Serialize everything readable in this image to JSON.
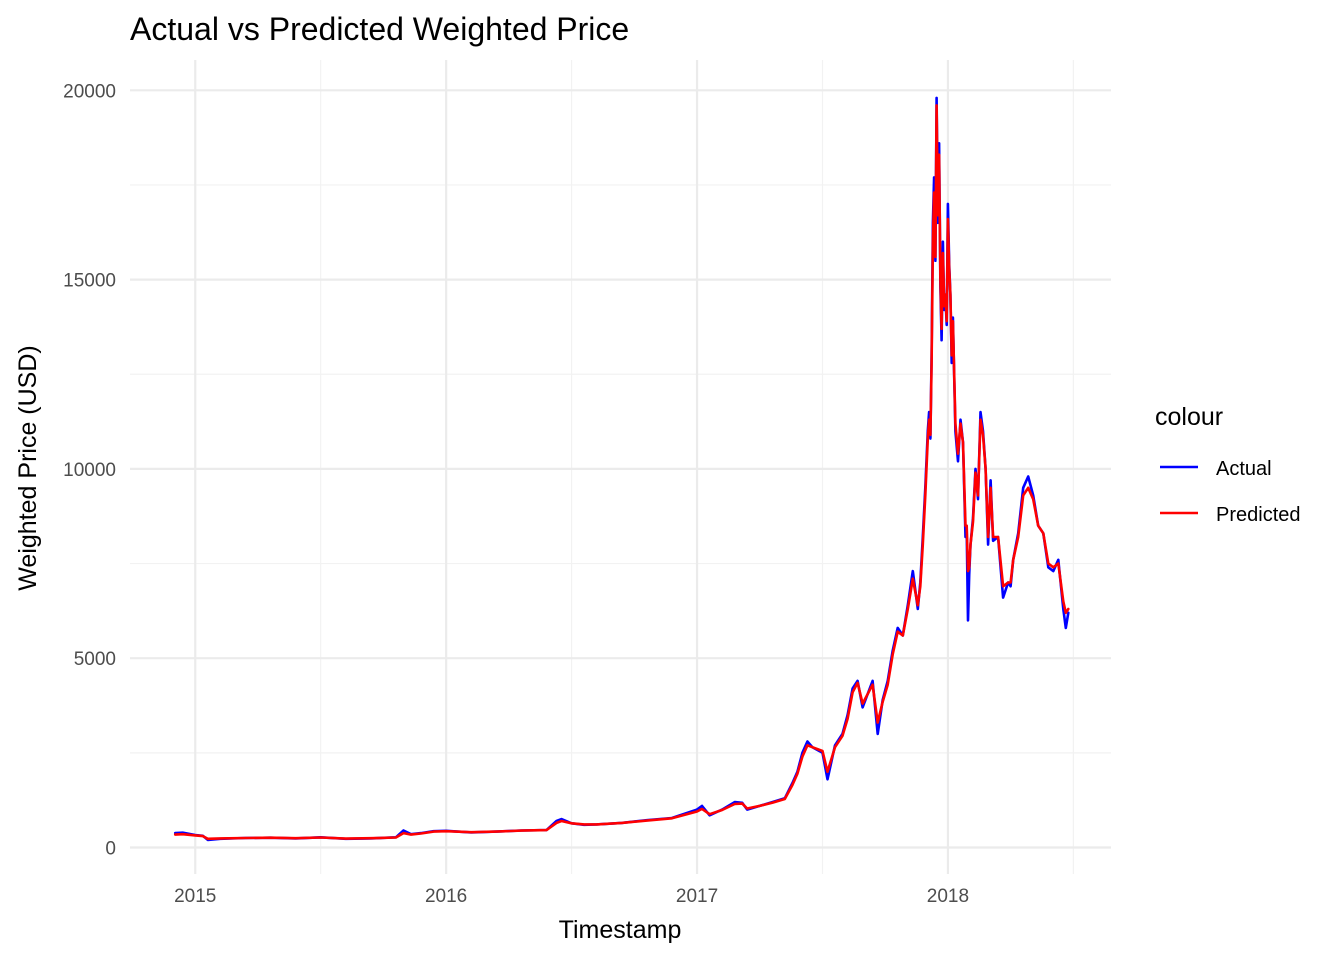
{
  "chart_data": {
    "type": "line",
    "title": "Actual vs Predicted Weighted Price",
    "xlabel": "Timestamp",
    "ylabel": "Weighted Price (USD)",
    "x_unit": "year",
    "xlim": [
      2014.74,
      2018.65
    ],
    "ylim": [
      -700,
      20800
    ],
    "x_ticks": [
      2015,
      2016,
      2017,
      2018
    ],
    "x_tick_labels": [
      "2015",
      "2016",
      "2017",
      "2018"
    ],
    "y_ticks": [
      0,
      5000,
      10000,
      15000,
      20000
    ],
    "y_tick_labels": [
      "0",
      "5000",
      "10000",
      "15000",
      "20000"
    ],
    "grid": true,
    "legend": {
      "title": "colour",
      "position": "right",
      "entries": [
        "Actual",
        "Predicted"
      ]
    },
    "series": [
      {
        "name": "Actual",
        "color": "#0000ff",
        "x": [
          2014.92,
          2014.95,
          2015.0,
          2015.03,
          2015.05,
          2015.1,
          2015.2,
          2015.3,
          2015.4,
          2015.5,
          2015.6,
          2015.7,
          2015.8,
          2015.83,
          2015.86,
          2015.9,
          2015.95,
          2016.0,
          2016.1,
          2016.2,
          2016.3,
          2016.4,
          2016.44,
          2016.46,
          2016.5,
          2016.55,
          2016.6,
          2016.7,
          2016.8,
          2016.9,
          2017.0,
          2017.02,
          2017.05,
          2017.1,
          2017.15,
          2017.18,
          2017.2,
          2017.25,
          2017.3,
          2017.35,
          2017.38,
          2017.4,
          2017.42,
          2017.44,
          2017.46,
          2017.5,
          2017.52,
          2017.55,
          2017.58,
          2017.6,
          2017.62,
          2017.64,
          2017.66,
          2017.7,
          2017.72,
          2017.74,
          2017.76,
          2017.78,
          2017.8,
          2017.82,
          2017.84,
          2017.86,
          2017.88,
          2017.89,
          2017.9,
          2017.91,
          2017.92,
          2017.925,
          2017.93,
          2017.935,
          2017.94,
          2017.945,
          2017.95,
          2017.955,
          2017.96,
          2017.965,
          2017.97,
          2017.975,
          2017.98,
          2017.985,
          2017.99,
          2017.995,
          2018.0,
          2018.005,
          2018.01,
          2018.015,
          2018.02,
          2018.03,
          2018.04,
          2018.05,
          2018.06,
          2018.07,
          2018.075,
          2018.08,
          2018.085,
          2018.09,
          2018.1,
          2018.11,
          2018.12,
          2018.13,
          2018.14,
          2018.15,
          2018.16,
          2018.17,
          2018.18,
          2018.2,
          2018.22,
          2018.24,
          2018.25,
          2018.26,
          2018.28,
          2018.3,
          2018.32,
          2018.34,
          2018.36,
          2018.38,
          2018.4,
          2018.42,
          2018.44,
          2018.46,
          2018.47,
          2018.48
        ],
        "y": [
          380,
          390,
          330,
          310,
          200,
          230,
          250,
          260,
          240,
          270,
          230,
          240,
          270,
          450,
          350,
          380,
          430,
          440,
          400,
          420,
          450,
          460,
          700,
          750,
          640,
          600,
          610,
          650,
          720,
          780,
          1000,
          1100,
          850,
          1000,
          1200,
          1180,
          1000,
          1100,
          1200,
          1300,
          1700,
          2000,
          2500,
          2800,
          2650,
          2500,
          1800,
          2700,
          3000,
          3500,
          4200,
          4400,
          3700,
          4400,
          3000,
          3900,
          4400,
          5200,
          5800,
          5600,
          6400,
          7300,
          6300,
          7000,
          8200,
          9500,
          11000,
          11500,
          10800,
          13000,
          16500,
          17700,
          15500,
          19800,
          16500,
          18600,
          14800,
          13400,
          16000,
          14200,
          14600,
          13800,
          17000,
          15400,
          14600,
          12800,
          14000,
          11000,
          10200,
          11300,
          10700,
          8200,
          8400,
          6000,
          7200,
          8000,
          8700,
          10000,
          9200,
          11500,
          11000,
          10000,
          8000,
          9700,
          8100,
          8200,
          6600,
          7000,
          6900,
          7600,
          8300,
          9500,
          9800,
          9300,
          8500,
          8300,
          7400,
          7300,
          7600,
          6300,
          5800,
          6200
        ]
      },
      {
        "name": "Predicted",
        "color": "#ff0000",
        "x": [
          2014.92,
          2014.95,
          2015.0,
          2015.03,
          2015.05,
          2015.1,
          2015.2,
          2015.3,
          2015.4,
          2015.5,
          2015.6,
          2015.7,
          2015.8,
          2015.83,
          2015.86,
          2015.9,
          2015.95,
          2016.0,
          2016.1,
          2016.2,
          2016.3,
          2016.4,
          2016.44,
          2016.46,
          2016.5,
          2016.55,
          2016.6,
          2016.7,
          2016.8,
          2016.9,
          2017.0,
          2017.02,
          2017.05,
          2017.1,
          2017.15,
          2017.18,
          2017.2,
          2017.25,
          2017.3,
          2017.35,
          2017.38,
          2017.4,
          2017.42,
          2017.44,
          2017.46,
          2017.5,
          2017.52,
          2017.55,
          2017.58,
          2017.6,
          2017.62,
          2017.64,
          2017.66,
          2017.7,
          2017.72,
          2017.74,
          2017.76,
          2017.78,
          2017.8,
          2017.82,
          2017.84,
          2017.86,
          2017.88,
          2017.89,
          2017.9,
          2017.91,
          2017.92,
          2017.925,
          2017.93,
          2017.935,
          2017.94,
          2017.945,
          2017.95,
          2017.955,
          2017.96,
          2017.965,
          2017.97,
          2017.975,
          2017.98,
          2017.985,
          2017.99,
          2017.995,
          2018.0,
          2018.005,
          2018.01,
          2018.015,
          2018.02,
          2018.03,
          2018.04,
          2018.05,
          2018.06,
          2018.07,
          2018.075,
          2018.08,
          2018.085,
          2018.09,
          2018.1,
          2018.11,
          2018.12,
          2018.13,
          2018.14,
          2018.15,
          2018.16,
          2018.17,
          2018.18,
          2018.2,
          2018.22,
          2018.24,
          2018.25,
          2018.26,
          2018.28,
          2018.3,
          2018.32,
          2018.34,
          2018.36,
          2018.38,
          2018.4,
          2018.42,
          2018.44,
          2018.46,
          2018.47,
          2018.48
        ],
        "y": [
          340,
          350,
          320,
          300,
          230,
          240,
          250,
          260,
          245,
          265,
          235,
          245,
          265,
          380,
          340,
          370,
          420,
          430,
          405,
          420,
          445,
          460,
          650,
          700,
          640,
          610,
          610,
          650,
          710,
          770,
          950,
          1020,
          880,
          990,
          1150,
          1160,
          1030,
          1100,
          1180,
          1280,
          1650,
          1950,
          2400,
          2700,
          2650,
          2550,
          2000,
          2650,
          2950,
          3400,
          4100,
          4350,
          3800,
          4300,
          3300,
          3850,
          4300,
          5100,
          5700,
          5600,
          6300,
          7100,
          6400,
          6900,
          8000,
          9300,
          10800,
          11300,
          10900,
          12800,
          16000,
          17300,
          15600,
          19600,
          16700,
          18300,
          15000,
          13700,
          15700,
          14300,
          14600,
          13900,
          16600,
          15300,
          14600,
          13000,
          13900,
          11200,
          10400,
          11200,
          10700,
          8500,
          8500,
          7300,
          7400,
          8000,
          8600,
          9900,
          9300,
          11300,
          10900,
          10000,
          8200,
          9500,
          8200,
          8200,
          6900,
          7000,
          7000,
          7600,
          8200,
          9300,
          9500,
          9200,
          8500,
          8300,
          7500,
          7400,
          7500,
          6500,
          6200,
          6300
        ]
      }
    ]
  }
}
